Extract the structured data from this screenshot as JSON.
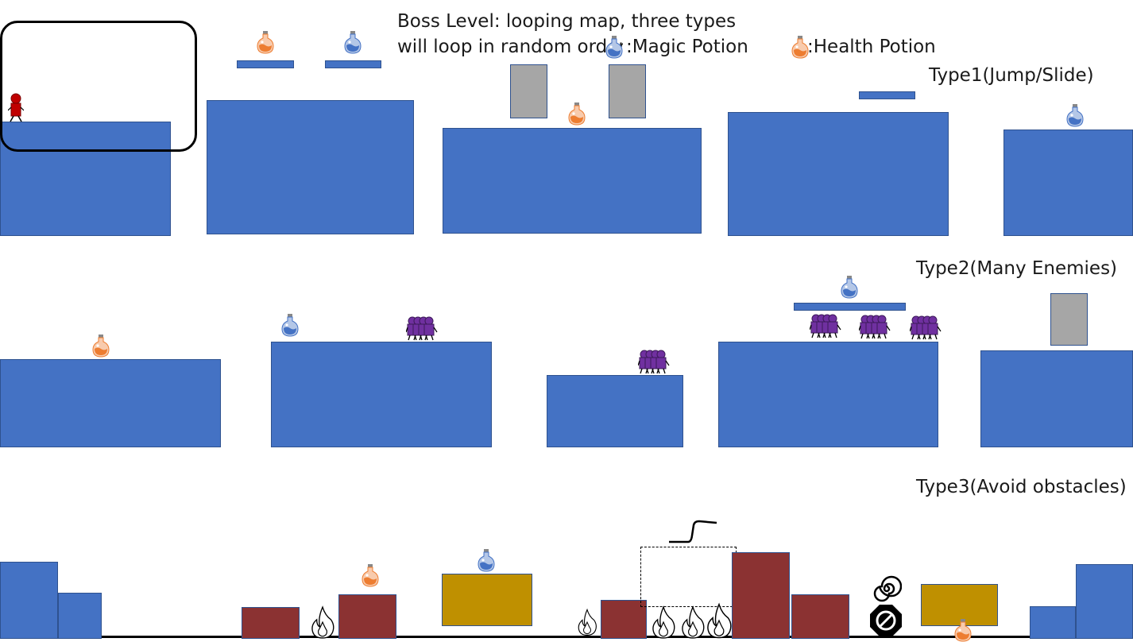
{
  "title_lines": [
    "Boss Level: looping map, three types",
    "will loop in random order"
  ],
  "legend": {
    "magic_potion": ":Magic Potion",
    "health_potion": ":Health Potion"
  },
  "types": {
    "type1": "Type1(Jump/Slide)",
    "type2": "Type2(Many Enemies)",
    "type3": "Type3(Avoid obstacles)"
  },
  "colors": {
    "platform": "#4472c4",
    "block": "#a6a6a6",
    "brick": "#8b3232",
    "gold": "#bf9000",
    "enemy": "#7030a0",
    "player": "#c00000",
    "magic_potion": "#4472c4",
    "health_potion": "#ed7d31"
  }
}
